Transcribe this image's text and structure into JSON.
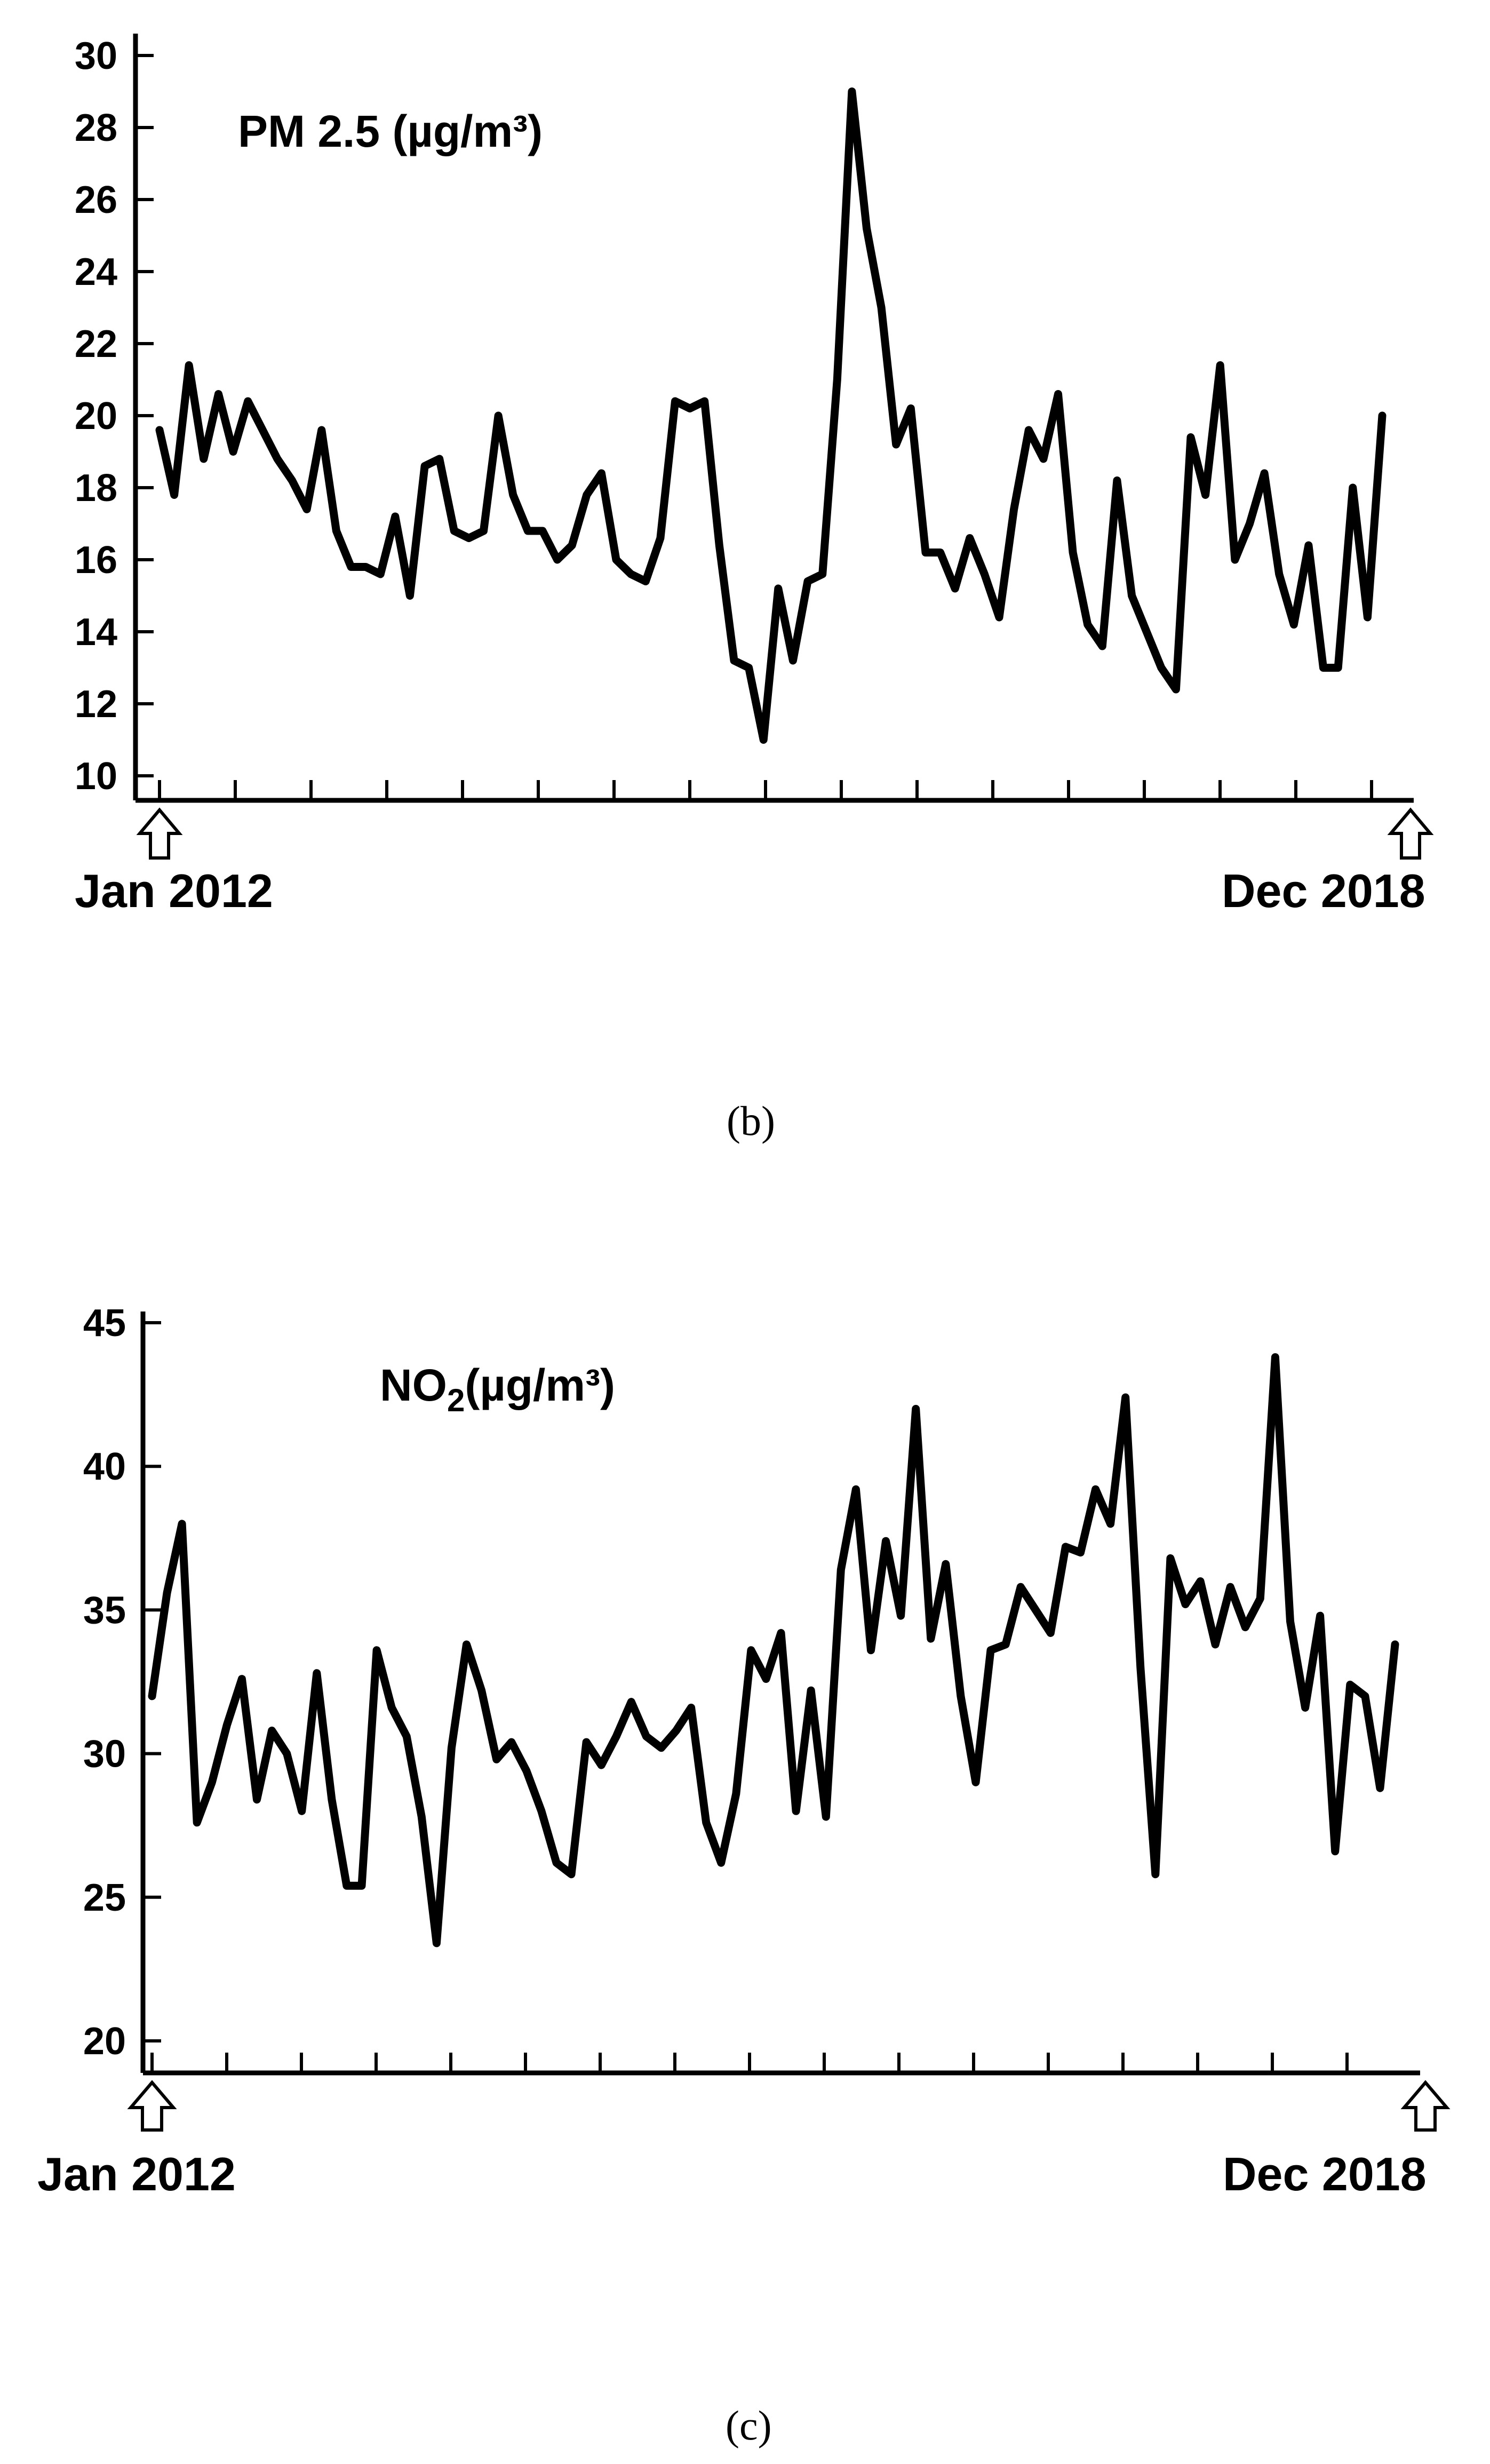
{
  "chart_data": [
    {
      "type": "line",
      "title": "PM 2.5 (µg/m³)",
      "panel_label": "(b)",
      "start_label": "Jan 2012",
      "end_label": "Dec 2018",
      "ylim": [
        10,
        30
      ],
      "yticks": [
        "10",
        "12",
        "14",
        "16",
        "18",
        "20",
        "22",
        "24",
        "26",
        "28",
        "30"
      ],
      "series": [
        {
          "values": [
            19.6,
            17.8,
            21.4,
            18.8,
            20.6,
            19.0,
            20.4,
            19.6,
            18.8,
            18.2,
            17.4,
            19.6,
            16.8,
            15.8,
            15.8,
            15.6,
            17.2,
            15.0,
            18.6,
            18.8,
            16.8,
            16.6,
            16.8,
            20.0,
            17.8,
            16.8,
            16.8,
            16.0,
            16.4,
            17.8,
            18.4,
            16.0,
            15.6,
            15.4,
            16.6,
            20.4,
            20.2,
            20.4,
            16.4,
            13.2,
            13.0,
            11.0,
            15.2,
            13.2,
            15.4,
            15.6,
            21.0,
            29.0,
            25.2,
            23.0,
            19.2,
            20.2,
            16.2,
            16.2,
            15.2,
            16.6,
            15.6,
            14.4,
            17.4,
            19.6,
            18.8,
            20.6,
            16.2,
            14.2,
            13.6,
            18.2,
            15.0,
            14.0,
            13.0,
            12.4,
            19.4,
            17.8,
            21.4,
            16.0,
            17.0,
            18.4,
            15.6,
            14.2,
            16.4,
            13.0,
            13.0,
            18.0,
            14.4,
            20.0
          ]
        }
      ]
    },
    {
      "type": "line",
      "title_main": "NO",
      "title_sub": "2",
      "title_rest": "(µg/m³)",
      "panel_label": "(c)",
      "start_label": "Jan 2012",
      "end_label": "Dec 2018",
      "ylim": [
        20,
        45
      ],
      "yticks": [
        "20",
        "25",
        "30",
        "35",
        "40",
        "45"
      ],
      "series": [
        {
          "values": [
            32.0,
            35.6,
            38.0,
            27.6,
            29.0,
            31.0,
            32.6,
            28.4,
            30.8,
            30.0,
            28.0,
            32.8,
            28.4,
            25.4,
            25.4,
            33.6,
            31.6,
            30.6,
            27.8,
            23.4,
            30.2,
            33.8,
            32.2,
            29.8,
            30.4,
            29.4,
            28.0,
            26.2,
            25.8,
            30.4,
            29.6,
            30.6,
            31.8,
            30.6,
            30.2,
            30.8,
            31.6,
            27.6,
            26.2,
            28.6,
            33.6,
            32.6,
            34.2,
            28.0,
            32.2,
            27.8,
            36.4,
            39.2,
            33.6,
            37.4,
            34.8,
            42.0,
            34.0,
            36.6,
            32.0,
            29.0,
            33.6,
            33.8,
            35.8,
            35.0,
            34.2,
            37.2,
            37.0,
            39.2,
            38.0,
            42.4,
            33.0,
            25.8,
            36.8,
            35.2,
            36.0,
            33.8,
            35.8,
            34.4,
            35.4,
            43.8,
            34.6,
            31.6,
            34.8,
            26.6,
            32.4,
            32.0,
            28.8,
            33.8
          ]
        }
      ]
    }
  ]
}
